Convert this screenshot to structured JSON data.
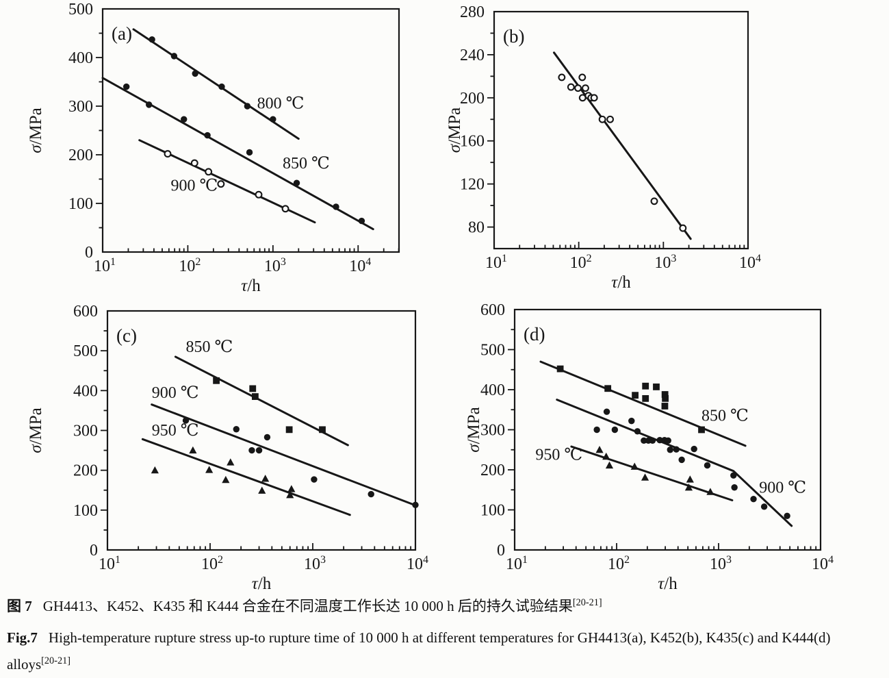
{
  "caption": {
    "zh": {
      "label": "图 7",
      "text": "GH4413、K452、K435 和 K444 合金在不同温度工作长达 10 000 h 后的持久试验结果",
      "ref": "[20-21]"
    },
    "en": {
      "label": "Fig.7",
      "text": "High-temperature rupture stress up-to rupture time of 10 000 h at different temperatures for GH4413(a), K452(b), K435(c) and K444(d) alloys",
      "ref": "[20-21]"
    }
  },
  "chart_data": [
    {
      "id": "a",
      "tag": "(a)",
      "type": "scatter",
      "xlabel_sym": "τ",
      "xlabel_rest": "/h",
      "ylabel_sym": "σ",
      "ylabel_rest": "/MPa",
      "x_log_min": 1,
      "x_log_max": 4.48,
      "x_tick_exponents": [
        1,
        2,
        3,
        4
      ],
      "ylim": [
        0,
        500
      ],
      "y_major": 100,
      "y_minor": 50,
      "y_tick_labels": [
        {
          "v": 0,
          "t": "0"
        },
        {
          "v": 100,
          "t": "100"
        },
        {
          "v": 200,
          "t": "200"
        },
        {
          "v": 300,
          "t": "300"
        },
        {
          "v": 400,
          "t": "400"
        },
        {
          "v": 500,
          "t": "500"
        }
      ],
      "series": [
        {
          "name": "800 ℃",
          "marker": "filled-circle",
          "points": [
            [
              38,
              437
            ],
            [
              69,
              403
            ],
            [
              122,
              367
            ],
            [
              250,
              340
            ],
            [
              500,
              300
            ],
            [
              1000,
              273
            ]
          ],
          "line": [
            [
              23,
              458
            ],
            [
              2000,
              233
            ]
          ],
          "label": {
            "x": 650,
            "y": 295
          }
        },
        {
          "name": "850 ℃",
          "marker": "filled-circle",
          "points": [
            [
              19,
              340
            ],
            [
              35,
              303
            ],
            [
              90,
              273
            ],
            [
              170,
              240
            ],
            [
              530,
              205
            ],
            [
              1900,
              142
            ],
            [
              5500,
              93
            ],
            [
              11000,
              64
            ]
          ],
          "line": [
            [
              10,
              358
            ],
            [
              15000,
              47
            ]
          ],
          "label": {
            "x": 1300,
            "y": 172
          }
        },
        {
          "name": "900 ℃",
          "marker": "open-circle",
          "points": [
            [
              58,
              202
            ],
            [
              120,
              183
            ],
            [
              175,
              165
            ],
            [
              245,
              140
            ],
            [
              680,
              118
            ],
            [
              1400,
              89
            ]
          ],
          "line": [
            [
              27,
              230
            ],
            [
              3100,
              61
            ]
          ],
          "label": {
            "x": 63,
            "y": 126
          }
        }
      ]
    },
    {
      "id": "b",
      "tag": "(b)",
      "type": "scatter",
      "xlabel_sym": "τ",
      "xlabel_rest": "/h",
      "ylabel_sym": "σ",
      "ylabel_rest": "/MPa",
      "x_log_min": 1,
      "x_log_max": 4,
      "x_tick_exponents": [
        1,
        2,
        3,
        4
      ],
      "ylim": [
        60,
        280
      ],
      "y_major": 40,
      "y_minor": 20,
      "y_tick_labels": [
        {
          "v": 80,
          "t": "80"
        },
        {
          "v": 120,
          "t": "120"
        },
        {
          "v": 160,
          "t": "160"
        },
        {
          "v": 200,
          "t": "200"
        },
        {
          "v": 240,
          "t": "240"
        },
        {
          "v": 280,
          "t": "280"
        }
      ],
      "series": [
        {
          "name": "",
          "marker": "open-circle",
          "points": [
            [
              63,
              219
            ],
            [
              81,
              210
            ],
            [
              98,
              209
            ],
            [
              110,
              219
            ],
            [
              111,
              200
            ],
            [
              120,
              209
            ],
            [
              130,
              202
            ],
            [
              140,
              200
            ],
            [
              152,
              200
            ],
            [
              190,
              180
            ],
            [
              235,
              180
            ],
            [
              780,
              104
            ],
            [
              1700,
              79
            ]
          ],
          "line": [
            [
              51,
              242
            ],
            [
              2100,
              69
            ]
          ]
        }
      ]
    },
    {
      "id": "c",
      "tag": "(c)",
      "type": "scatter",
      "xlabel_sym": "τ",
      "xlabel_rest": "/h",
      "ylabel_sym": "σ",
      "ylabel_rest": "/MPa",
      "x_log_min": 1,
      "x_log_max": 4,
      "x_tick_exponents": [
        1,
        2,
        3,
        4
      ],
      "ylim": [
        0,
        600
      ],
      "y_major": 100,
      "y_minor": 50,
      "y_tick_labels": [
        {
          "v": 0,
          "t": "0"
        },
        {
          "v": 100,
          "t": "100"
        },
        {
          "v": 200,
          "t": "200"
        },
        {
          "v": 300,
          "t": "300"
        },
        {
          "v": 400,
          "t": "400"
        },
        {
          "v": 500,
          "t": "500"
        },
        {
          "v": 600,
          "t": "600"
        }
      ],
      "series": [
        {
          "name": "850 ℃",
          "marker": "filled-square",
          "points": [
            [
              115,
              425
            ],
            [
              260,
              405
            ],
            [
              275,
              385
            ],
            [
              590,
              302
            ],
            [
              1240,
              302
            ]
          ],
          "line": [
            [
              46,
              485
            ],
            [
              2200,
              263
            ]
          ],
          "label": {
            "x": 58,
            "y": 497
          }
        },
        {
          "name": "900 ℃",
          "marker": "filled-circle",
          "points": [
            [
              58,
              325
            ],
            [
              180,
              303
            ],
            [
              255,
              250
            ],
            [
              300,
              250
            ],
            [
              360,
              283
            ],
            [
              1030,
              177
            ],
            [
              3700,
              140
            ],
            [
              10000,
              113
            ]
          ],
          "line": [
            [
              27,
              365
            ],
            [
              10000,
              112
            ]
          ],
          "label": {
            "x": 27,
            "y": 382
          }
        },
        {
          "name": "950 ℃",
          "marker": "filled-triangle",
          "points": [
            [
              29,
              200
            ],
            [
              68,
              250
            ],
            [
              98,
              201
            ],
            [
              142,
              176
            ],
            [
              158,
              220
            ],
            [
              320,
              149
            ],
            [
              345,
              179
            ],
            [
              600,
              138
            ],
            [
              620,
              153
            ]
          ],
          "line": [
            [
              22,
              278
            ],
            [
              2300,
              88
            ]
          ],
          "label": {
            "x": 27,
            "y": 287
          }
        }
      ]
    },
    {
      "id": "d",
      "tag": "(d)",
      "type": "scatter",
      "xlabel_sym": "τ",
      "xlabel_rest": "/h",
      "ylabel_sym": "σ",
      "ylabel_rest": "/MPa",
      "x_log_min": 1,
      "x_log_max": 4,
      "x_tick_exponents": [
        1,
        2,
        3,
        4
      ],
      "ylim": [
        0,
        600
      ],
      "y_major": 100,
      "y_minor": 50,
      "y_tick_labels": [
        {
          "v": 0,
          "t": "0"
        },
        {
          "v": 100,
          "t": "100"
        },
        {
          "v": 200,
          "t": "200"
        },
        {
          "v": 300,
          "t": "300"
        },
        {
          "v": 400,
          "t": "400"
        },
        {
          "v": 500,
          "t": "500"
        },
        {
          "v": 600,
          "t": "600"
        }
      ],
      "series": [
        {
          "name": "850 ℃",
          "marker": "filled-square",
          "points": [
            [
              28,
              452
            ],
            [
              82,
              403
            ],
            [
              152,
              386
            ],
            [
              192,
              409
            ],
            [
              245,
              407
            ],
            [
              192,
              378
            ],
            [
              298,
              388
            ],
            [
              300,
              378
            ],
            [
              297,
              359
            ],
            [
              680,
              300
            ]
          ],
          "line": [
            [
              18,
              470
            ],
            [
              1830,
              260
            ]
          ],
          "label": {
            "x": 680,
            "y": 322
          }
        },
        {
          "name": "900 ℃",
          "marker": "filled-circle",
          "points": [
            [
              64,
              300
            ],
            [
              80,
              345
            ],
            [
              96,
              300
            ],
            [
              140,
              322
            ],
            [
              160,
              296
            ],
            [
              185,
              273
            ],
            [
              205,
              273
            ],
            [
              225,
              273
            ],
            [
              265,
              274
            ],
            [
              295,
              274
            ],
            [
              320,
              273
            ],
            [
              335,
              250
            ],
            [
              385,
              251
            ],
            [
              435,
              225
            ],
            [
              575,
              252
            ],
            [
              775,
              211
            ],
            [
              1400,
              186
            ],
            [
              1430,
              156
            ],
            [
              2200,
              127
            ],
            [
              2800,
              108
            ],
            [
              4700,
              85
            ]
          ],
          "line": [
            [
              26,
              375
            ],
            [
              1400,
              197
            ],
            [
              5200,
              60
            ]
          ],
          "label": {
            "x": 2500,
            "y": 143
          }
        },
        {
          "name": "950 ℃",
          "marker": "filled-triangle",
          "points": [
            [
              68,
              250
            ],
            [
              79,
              233
            ],
            [
              85,
              211
            ],
            [
              150,
              208
            ],
            [
              190,
              181
            ],
            [
              510,
              156
            ],
            [
              525,
              176
            ],
            [
              830,
              145
            ]
          ],
          "line": [
            [
              36,
              258
            ],
            [
              1360,
              124
            ]
          ],
          "label": {
            "x": 16,
            "y": 225
          }
        }
      ]
    }
  ]
}
